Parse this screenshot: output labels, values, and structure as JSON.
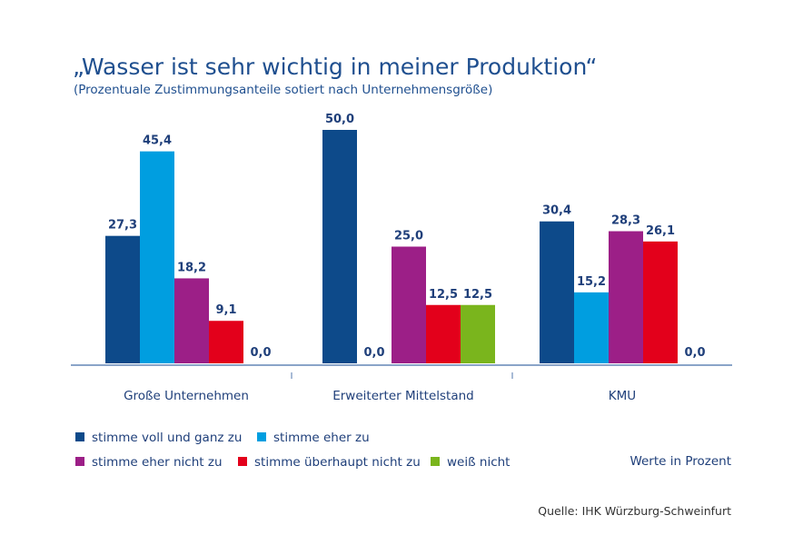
{
  "chart_data": {
    "type": "bar",
    "title": "„Wasser ist sehr wichtig in meiner Produktion“",
    "subtitle": "(Prozentuale Zustimmungsanteile sotiert nach Unternehmensgröße)",
    "categories": [
      "Große Unternehmen",
      "Erweiterter Mittelstand",
      "KMU"
    ],
    "series": [
      {
        "name": "stimme voll und ganz zu",
        "color": "#0d4a8a",
        "values": [
          27.3,
          50.0,
          30.4
        ],
        "labels": [
          "27,3",
          "50,0",
          "30,4"
        ]
      },
      {
        "name": "stimme eher zu",
        "color": "#009ee0",
        "values": [
          45.4,
          0.0,
          15.2
        ],
        "labels": [
          "45,4",
          "0,0",
          "15,2"
        ]
      },
      {
        "name": "stimme eher nicht zu",
        "color": "#9c1f87",
        "values": [
          18.2,
          25.0,
          28.3
        ],
        "labels": [
          "18,2",
          "25,0",
          "28,3"
        ]
      },
      {
        "name": "stimme überhaupt nicht zu",
        "color": "#e3001b",
        "values": [
          9.1,
          12.5,
          26.1
        ],
        "labels": [
          "9,1",
          "12,5",
          "26,1"
        ]
      },
      {
        "name": "weiß nicht",
        "color": "#7ab51d",
        "values": [
          0.0,
          12.5,
          0.0
        ],
        "labels": [
          "0,0",
          "12,5",
          "0,0"
        ]
      }
    ],
    "ylim": [
      0,
      50
    ],
    "grid": false,
    "legend_position": "bottom-left"
  },
  "note": "Werte in Prozent",
  "source": "Quelle: IHK Würzburg-Schweinfurt",
  "axis_color": "#8aa4c8"
}
